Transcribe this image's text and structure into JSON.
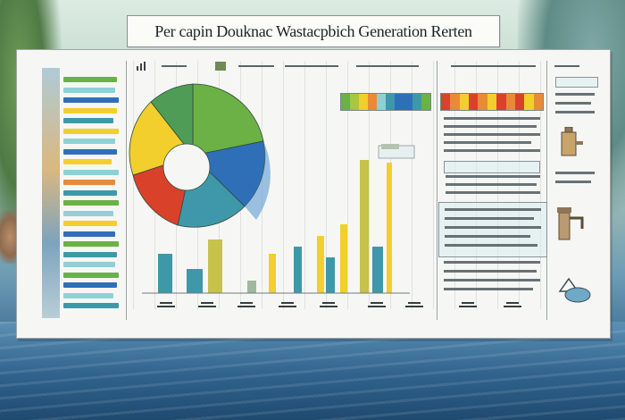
{
  "header": {
    "title": "Per capin Douknac Wastacpbich Generation Rerten"
  },
  "icons": [
    "bar-chart-icon",
    "grid-icon",
    "document-icon",
    "faucet-icon",
    "water-tank-icon",
    "water-drop-icon"
  ],
  "colors": {
    "yellow": "#f2cf2c",
    "green": "#6bb145",
    "blue": "#2f6fb8",
    "red": "#d9412b",
    "teal": "#3e98a9",
    "light_teal": "#8fd0d6",
    "orange": "#e98a36",
    "lime": "#a9c640"
  }
}
